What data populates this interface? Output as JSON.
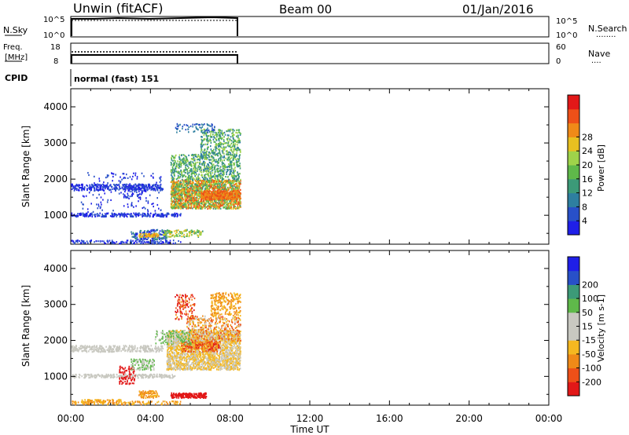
{
  "header": {
    "title": "Unwin (fitACF)",
    "beam": "Beam 00",
    "date": "01/Jan/2016"
  },
  "nsky_panel": {
    "left_label": "N.Sky",
    "left_ticks": [
      "10^5",
      "10^0"
    ],
    "right_ticks": [
      "10^5",
      "10^0"
    ],
    "right_label": "N.Search",
    "right_dots": "........"
  },
  "freq_panel": {
    "left_label_1": "Freq.",
    "left_label_2": "[MHz]",
    "left_ticks": [
      "18",
      "8"
    ],
    "right_ticks": [
      "60",
      "0"
    ],
    "right_label": "Nave",
    "right_dots": "...."
  },
  "cpid": {
    "label": "CPID",
    "value": "normal (fast) 151"
  },
  "x_axis": {
    "label": "Time UT",
    "ticks": [
      "00:00",
      "04:00",
      "08:00",
      "12:00",
      "16:00",
      "20:00",
      "00:00"
    ]
  },
  "colors": {
    "power": [
      "#1f1fe8",
      "#2850c8",
      "#2e7fa0",
      "#3c9a78",
      "#5fb94a",
      "#9fd34a",
      "#e8c020",
      "#f08a18",
      "#ee5018",
      "#e21818"
    ],
    "velocity": [
      "#e21818",
      "#ee5018",
      "#f08a18",
      "#f5b820",
      "#c8c8c0",
      "#c8c8c0",
      "#5fb94a",
      "#3c9a78",
      "#2850c8",
      "#1f1fe8"
    ]
  },
  "chart_data": [
    {
      "type": "heatmap",
      "name": "power",
      "ylabel": "Slant Range [km]",
      "xlabel": "",
      "ylim": [
        200,
        4500
      ],
      "xlim_hours": [
        0,
        24
      ],
      "yticks": [
        "1000",
        "2000",
        "3000",
        "4000"
      ],
      "colorbar_label": "Power [dB]",
      "colorbar_ticks": [
        "4",
        "8",
        "12",
        "16",
        "20",
        "24",
        "28"
      ],
      "data_extent_hours": [
        0,
        8.5
      ]
    },
    {
      "type": "heatmap",
      "name": "velocity",
      "ylabel": "Slant Range [km]",
      "xlabel": "Time UT",
      "ylim": [
        200,
        4500
      ],
      "xlim_hours": [
        0,
        24
      ],
      "yticks": [
        "1000",
        "2000",
        "3000",
        "4000"
      ],
      "colorbar_label": "Velocity [m s-1]",
      "colorbar_ticks": [
        "-200",
        "-100",
        "-50",
        "-15",
        "15",
        "50",
        "100",
        "200"
      ],
      "data_extent_hours": [
        0,
        8.5
      ]
    }
  ]
}
